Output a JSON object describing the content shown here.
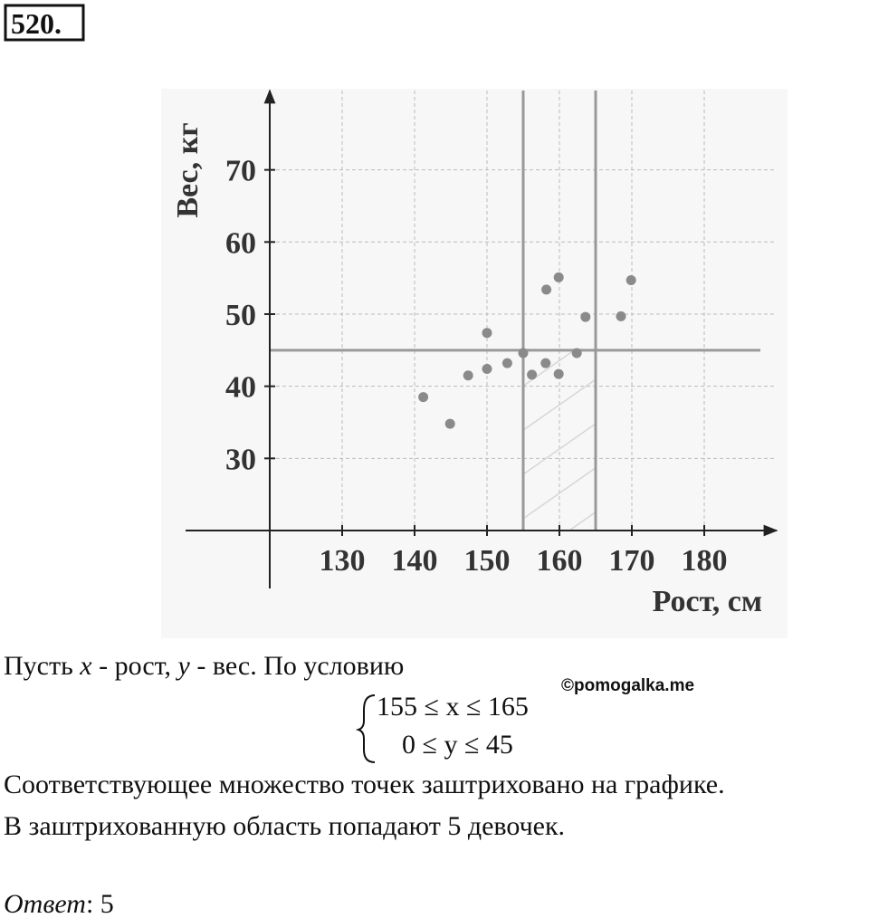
{
  "problem_number": "520.",
  "chart_data": {
    "type": "scatter",
    "x_label": "Рост, см",
    "y_label": "Вес, кг",
    "xlim": [
      120,
      190
    ],
    "ylim": [
      20,
      81
    ],
    "xticks": [
      130,
      140,
      150,
      160,
      170,
      180
    ],
    "yticks": [
      30,
      40,
      50,
      60,
      70
    ],
    "grid": true,
    "color": "#8a8a8a",
    "vlines": [
      155,
      165
    ],
    "hlines": [
      45
    ],
    "x": [
      141.2,
      144.9,
      147.4,
      150,
      150,
      152.8,
      155,
      156.2,
      158.1,
      158.2,
      159.9,
      159.9,
      162.4,
      163.6,
      168.5,
      169.9
    ],
    "values": [
      38.5,
      34.8,
      41.5,
      47.4,
      42.4,
      43.2,
      44.6,
      41.6,
      43.2,
      53.4,
      55.1,
      41.7,
      44.6,
      49.6,
      49.7,
      54.7
    ]
  },
  "intro": [
    "Пусть ",
    "x",
    " - рост, ",
    "y",
    " - вес. По условию"
  ],
  "watermark": "©pomogalka.me",
  "conditions": [
    "155 ≤ x ≤ 165",
    "0 ≤ y ≤ 45"
  ],
  "lines": [
    "Соответствующее множество точек заштриховано на графике.",
    "В заштрихованную область попадают 5 девочек."
  ],
  "answer_label": "Ответ",
  "answer": ": 5"
}
